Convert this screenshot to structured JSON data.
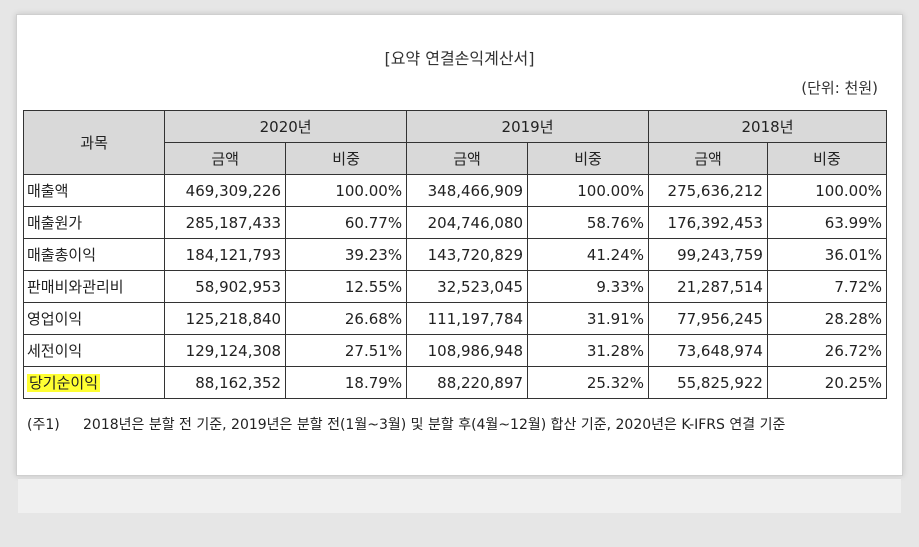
{
  "title": "[요약 연결손익계산서]",
  "unit": "(단위: 천원)",
  "header": {
    "subject": "과목",
    "years": [
      "2020년",
      "2019년",
      "2018년"
    ],
    "amount": "금액",
    "ratio": "비중"
  },
  "rows": [
    {
      "label": "매출액",
      "v": [
        "469,309,226",
        "100.00%",
        "348,466,909",
        "100.00%",
        "275,636,212",
        "100.00%"
      ]
    },
    {
      "label": "매출원가",
      "v": [
        "285,187,433",
        "60.77%",
        "204,746,080",
        "58.76%",
        "176,392,453",
        "63.99%"
      ]
    },
    {
      "label": "매출총이익",
      "v": [
        "184,121,793",
        "39.23%",
        "143,720,829",
        "41.24%",
        "99,243,759",
        "36.01%"
      ]
    },
    {
      "label": "판매비와관리비",
      "v": [
        "58,902,953",
        "12.55%",
        "32,523,045",
        "9.33%",
        "21,287,514",
        "7.72%"
      ]
    },
    {
      "label": "영업이익",
      "v": [
        "125,218,840",
        "26.68%",
        "111,197,784",
        "31.91%",
        "77,956,245",
        "28.28%"
      ]
    },
    {
      "label": "세전이익",
      "v": [
        "129,124,308",
        "27.51%",
        "108,986,948",
        "31.28%",
        "73,648,974",
        "26.72%"
      ]
    },
    {
      "label": "당기순이익",
      "v": [
        "88,162,352",
        "18.79%",
        "88,220,897",
        "25.32%",
        "55,825,922",
        "20.25%"
      ]
    }
  ],
  "highlight_color": "#ffff33",
  "note": {
    "tag": "(주1)",
    "text": "2018년은 분할 전 기준, 2019년은 분할 전(1월~3월) 및 분할 후(4월~12월) 합산 기준, 2020년은 K-IFRS 연결 기준"
  }
}
